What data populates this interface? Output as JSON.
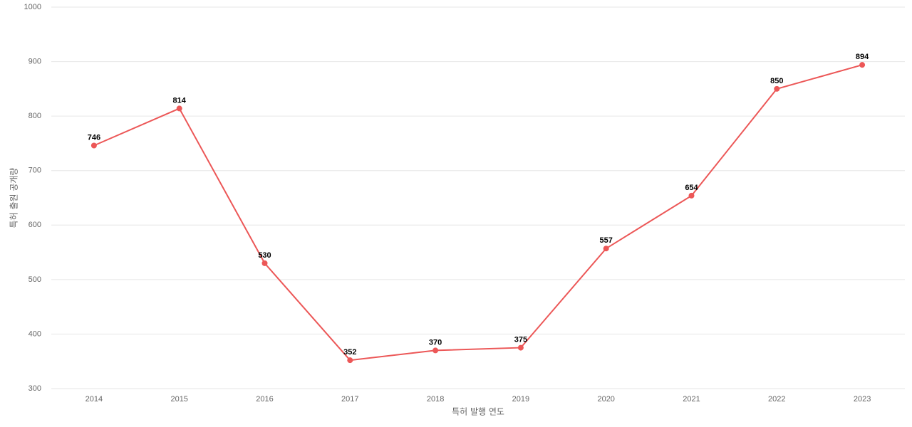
{
  "chart_data": {
    "type": "line",
    "categories": [
      "2014",
      "2015",
      "2016",
      "2017",
      "2018",
      "2019",
      "2020",
      "2021",
      "2022",
      "2023"
    ],
    "values": [
      746,
      814,
      530,
      352,
      370,
      375,
      557,
      654,
      850,
      894
    ],
    "color": "#ec5757",
    "x_label": "특허 발행 연도",
    "y_label": "특허 출원 공개량",
    "ylim": [
      300,
      1000
    ],
    "yticks": [
      300,
      400,
      500,
      600,
      700,
      800,
      900,
      1000
    ],
    "grid": true
  }
}
